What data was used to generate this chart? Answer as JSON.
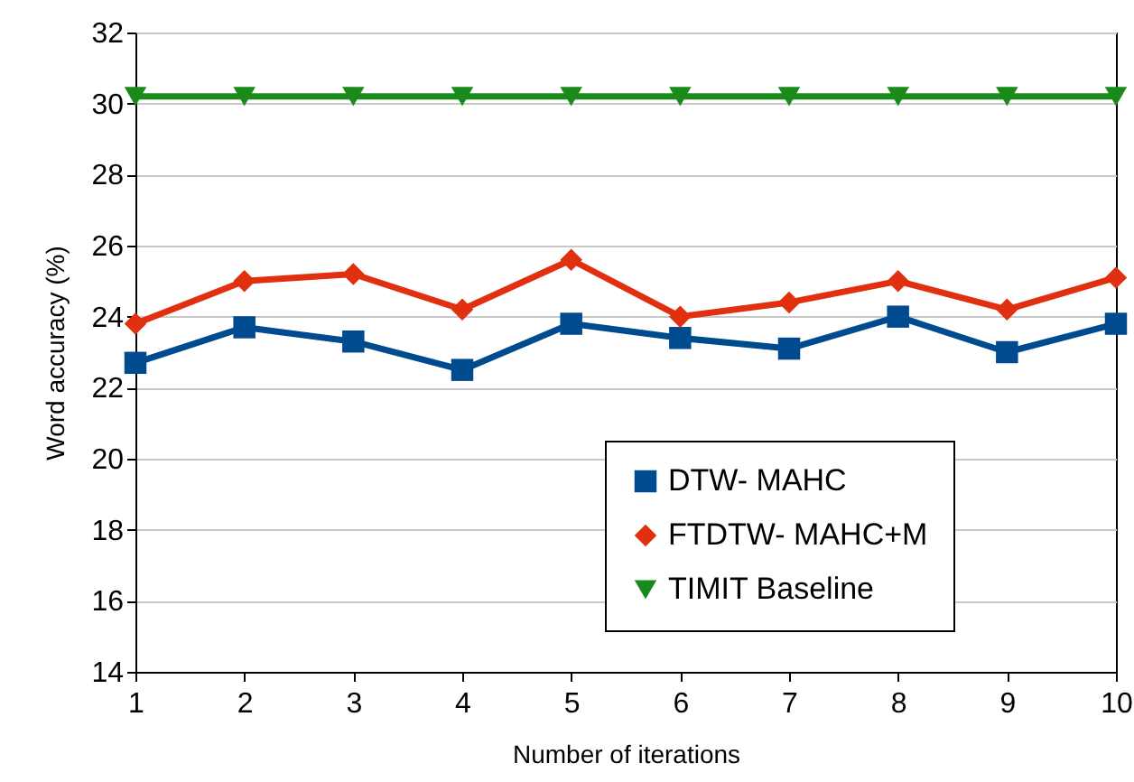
{
  "chart_data": {
    "type": "line",
    "xlabel": "Number of iterations",
    "ylabel": "Word accuracy (%)",
    "x": [
      1,
      2,
      3,
      4,
      5,
      6,
      7,
      8,
      9,
      10
    ],
    "series": [
      {
        "name": "DTW- MAHC",
        "color": "#004a8f",
        "marker": "square",
        "values": [
          22.7,
          23.7,
          23.3,
          22.5,
          23.8,
          23.4,
          23.1,
          24.0,
          23.0,
          23.8
        ]
      },
      {
        "name": "FTDTW- MAHC+M",
        "color": "#e0300f",
        "marker": "diamond",
        "values": [
          23.8,
          25.0,
          25.2,
          24.2,
          25.6,
          24.0,
          24.4,
          25.0,
          24.2,
          25.1
        ]
      },
      {
        "name": "TIMIT Baseline",
        "color": "#1a8a1a",
        "marker": "triangle",
        "values": [
          30.2,
          30.2,
          30.2,
          30.2,
          30.2,
          30.2,
          30.2,
          30.2,
          30.2,
          30.2
        ]
      }
    ],
    "xlim": [
      1,
      10
    ],
    "xticks": [
      1,
      2,
      3,
      4,
      5,
      6,
      7,
      8,
      9,
      10
    ],
    "ylim": [
      14,
      32
    ],
    "yticks": [
      14,
      16,
      18,
      20,
      22,
      24,
      26,
      28,
      30,
      32
    ],
    "grid": "y",
    "legend": "bottom right"
  }
}
